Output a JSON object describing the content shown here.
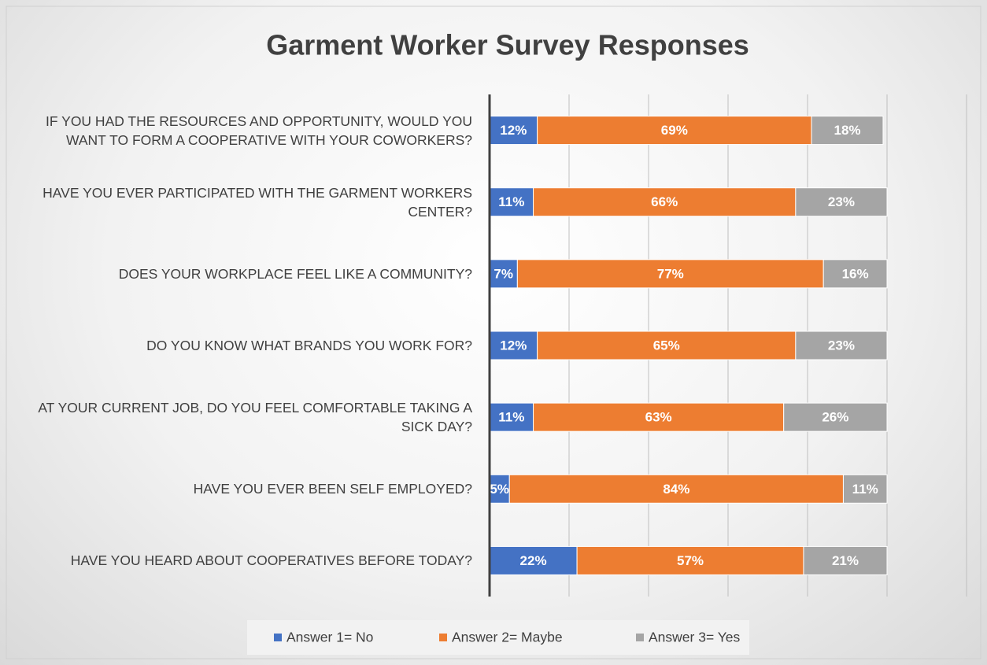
{
  "chart_data": {
    "type": "stacked_barh",
    "title": "Garment Worker Survey Responses",
    "categories": [
      "IF YOU HAD THE RESOURCES AND OPPORTUNITY, WOULD YOU WANT TO FORM A COOPERATIVE WITH YOUR COWORKERS?",
      "HAVE YOU EVER PARTICIPATED WITH THE GARMENT WORKERS CENTER?",
      "DOES YOUR WORKPLACE FEEL LIKE A COMMUNITY?",
      "DO YOU KNOW WHAT BRANDS YOU WORK FOR?",
      "AT YOUR CURRENT JOB, DO YOU FEEL COMFORTABLE TAKING A SICK DAY?",
      "HAVE YOU EVER BEEN SELF EMPLOYED?",
      "HAVE YOU HEARD ABOUT COOPERATIVES BEFORE TODAY?"
    ],
    "series": [
      {
        "name": "Answer 1= No",
        "color": "#4472c4",
        "values": [
          12,
          11,
          7,
          12,
          11,
          5,
          22
        ],
        "value_labels": [
          "12%",
          "11%",
          "7%",
          "12%",
          "11%",
          "5%",
          "22%"
        ]
      },
      {
        "name": "Answer 2= Maybe",
        "color": "#ed7d31",
        "values": [
          69,
          66,
          77,
          65,
          63,
          84,
          57
        ],
        "value_labels": [
          "69%",
          "66%",
          "77%",
          "65%",
          "63%",
          "84%",
          "57%"
        ]
      },
      {
        "name": "Answer 3= Yes",
        "color": "#a5a5a5",
        "values": [
          18,
          23,
          16,
          23,
          26,
          11,
          21
        ],
        "value_labels": [
          "18%",
          "23%",
          "16%",
          "23%",
          "26%",
          "11%",
          "21%"
        ]
      }
    ],
    "xlim": [
      0,
      120
    ],
    "xticks": [
      0,
      20,
      40,
      60,
      80,
      100,
      120
    ],
    "grid": true,
    "legend": "bottom"
  }
}
